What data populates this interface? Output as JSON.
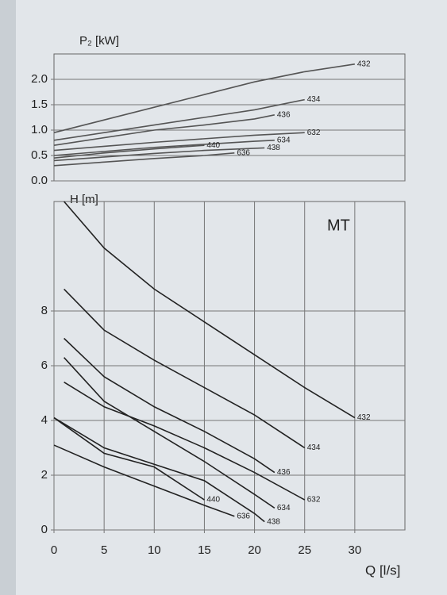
{
  "chart_data": [
    {
      "type": "line",
      "y_label": "P₂ [kW]",
      "xlim": [
        0,
        35
      ],
      "ylim": [
        0,
        2.5
      ],
      "yticks": [
        {
          "value": 0,
          "label": "0.0"
        },
        0.5,
        {
          "value": 1,
          "label": "1.0"
        },
        1.5,
        {
          "value": 2,
          "label": "2.0"
        }
      ],
      "grid": true,
      "series": [
        {
          "name": "432",
          "color": "#555",
          "x": [
            0,
            5,
            10,
            15,
            20,
            25,
            30
          ],
          "values": [
            0.95,
            1.2,
            1.45,
            1.7,
            1.95,
            2.15,
            2.3
          ]
        },
        {
          "name": "434",
          "color": "#555",
          "x": [
            0,
            5,
            10,
            15,
            20,
            25
          ],
          "values": [
            0.8,
            0.95,
            1.1,
            1.25,
            1.4,
            1.6
          ]
        },
        {
          "name": "436",
          "color": "#555",
          "x": [
            0,
            5,
            10,
            15,
            20,
            22
          ],
          "values": [
            0.7,
            0.85,
            1.0,
            1.1,
            1.22,
            1.3
          ]
        },
        {
          "name": "632",
          "color": "#555",
          "x": [
            0,
            5,
            10,
            15,
            20,
            25
          ],
          "values": [
            0.6,
            0.68,
            0.76,
            0.83,
            0.9,
            0.95
          ]
        },
        {
          "name": "634",
          "color": "#555",
          "x": [
            0,
            5,
            10,
            15,
            20,
            22
          ],
          "values": [
            0.5,
            0.58,
            0.66,
            0.72,
            0.78,
            0.8
          ]
        },
        {
          "name": "440",
          "color": "#555",
          "x": [
            0,
            5,
            10,
            15
          ],
          "values": [
            0.45,
            0.55,
            0.63,
            0.7
          ]
        },
        {
          "name": "438",
          "color": "#555",
          "x": [
            0,
            5,
            10,
            15,
            21
          ],
          "values": [
            0.4,
            0.47,
            0.54,
            0.6,
            0.65
          ]
        },
        {
          "name": "636",
          "color": "#555",
          "x": [
            0,
            5,
            10,
            15,
            18
          ],
          "values": [
            0.3,
            0.37,
            0.44,
            0.5,
            0.55
          ]
        }
      ]
    },
    {
      "type": "line",
      "y_label": "H [m]",
      "x_label": "Q [l/s]",
      "annotation": "MT",
      "xlim": [
        0,
        35
      ],
      "ylim": [
        0,
        12
      ],
      "xticks": [
        0,
        5,
        10,
        15,
        20,
        25,
        30
      ],
      "yticks": [
        0,
        2,
        4,
        6,
        8
      ],
      "grid": true,
      "series": [
        {
          "name": "432",
          "color": "#222",
          "x": [
            1,
            5,
            10,
            15,
            20,
            25,
            30
          ],
          "values": [
            12,
            10.3,
            8.8,
            7.6,
            6.4,
            5.2,
            4.1
          ]
        },
        {
          "name": "434",
          "color": "#222",
          "x": [
            1,
            5,
            10,
            15,
            20,
            25
          ],
          "values": [
            8.8,
            7.3,
            6.2,
            5.2,
            4.2,
            3.0
          ]
        },
        {
          "name": "436",
          "color": "#222",
          "x": [
            1,
            5,
            10,
            15,
            20,
            22
          ],
          "values": [
            7,
            5.6,
            4.5,
            3.6,
            2.6,
            2.1
          ]
        },
        {
          "name": "632",
          "color": "#222",
          "x": [
            1,
            5,
            10,
            15,
            20,
            25
          ],
          "values": [
            5.4,
            4.5,
            3.8,
            3.0,
            2.1,
            1.1
          ]
        },
        {
          "name": "634",
          "color": "#222",
          "x": [
            1,
            5,
            10,
            15,
            20,
            22
          ],
          "values": [
            6.3,
            4.7,
            3.6,
            2.5,
            1.3,
            0.8
          ]
        },
        {
          "name": "440",
          "color": "#222",
          "x": [
            0,
            5,
            10,
            15
          ],
          "values": [
            4.1,
            2.8,
            2.3,
            1.1
          ]
        },
        {
          "name": "438",
          "color": "#222",
          "x": [
            0,
            5,
            10,
            15,
            20,
            21
          ],
          "values": [
            4.1,
            3.0,
            2.4,
            1.8,
            0.6,
            0.3
          ]
        },
        {
          "name": "636",
          "color": "#222",
          "x": [
            0,
            5,
            10,
            15,
            18
          ],
          "values": [
            3.1,
            2.3,
            1.6,
            0.9,
            0.5
          ]
        }
      ]
    }
  ]
}
